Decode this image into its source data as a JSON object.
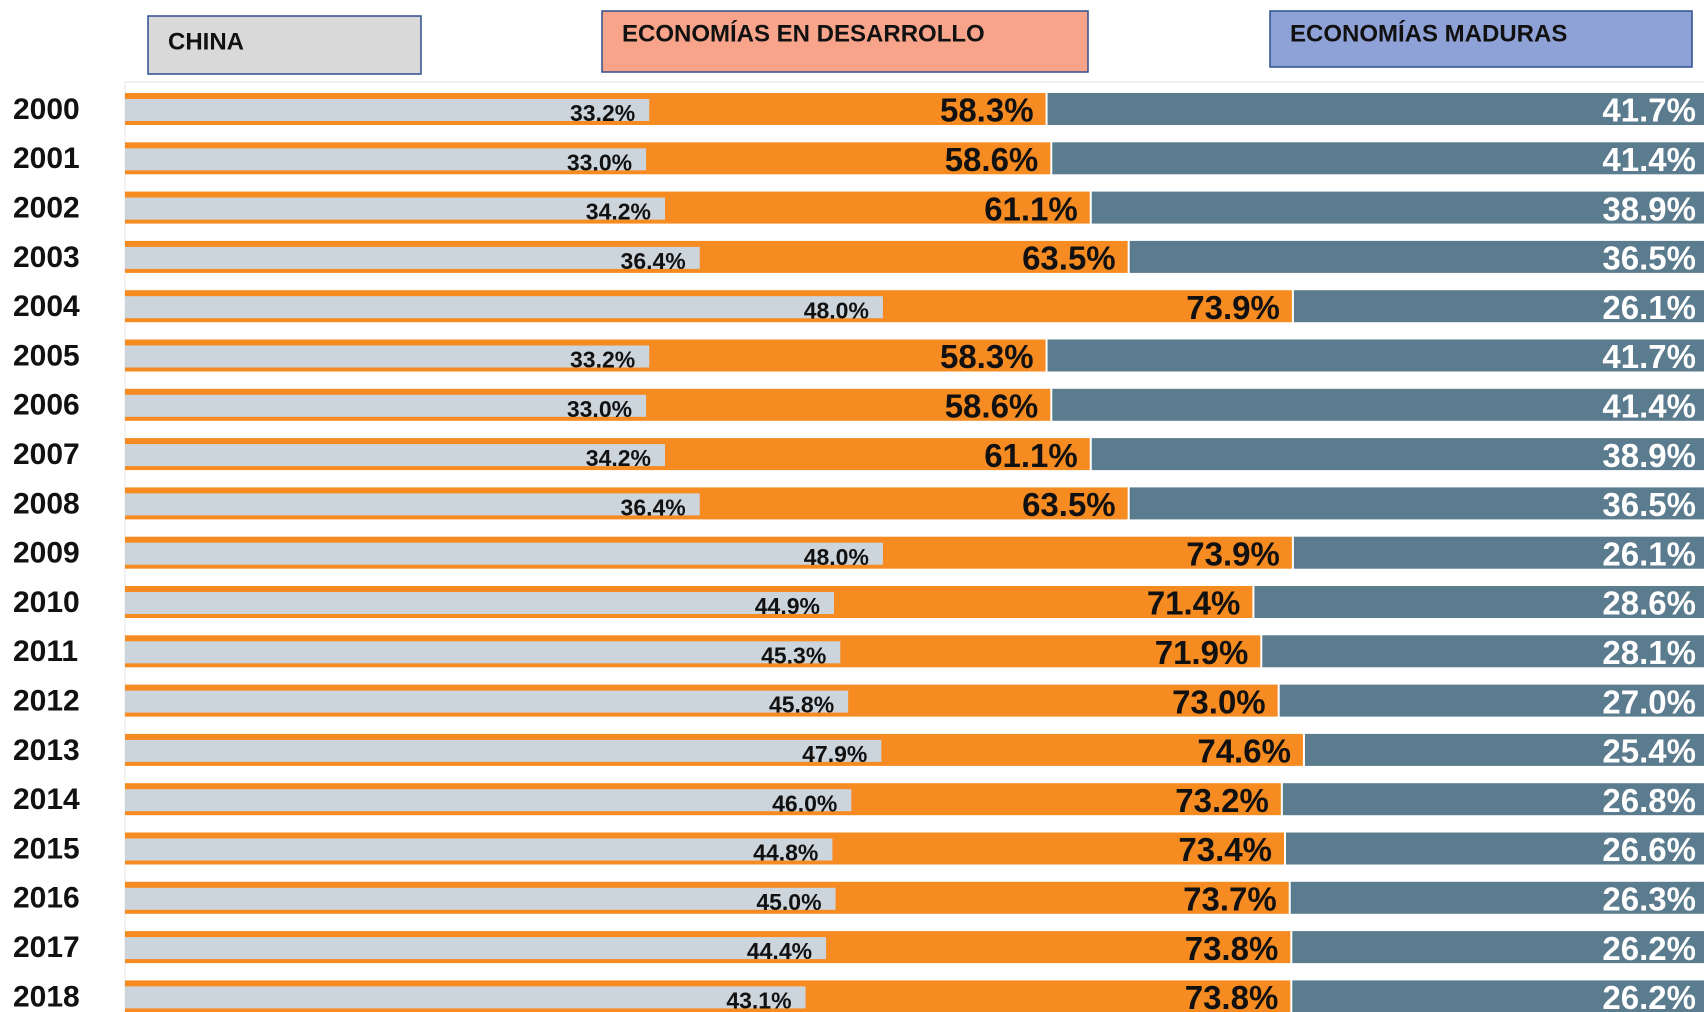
{
  "chart_data": {
    "type": "bar",
    "categories": [
      "2000",
      "2001",
      "2002",
      "2003",
      "2004",
      "2005",
      "2006",
      "2007",
      "2008",
      "2009",
      "2010",
      "2011",
      "2012",
      "2013",
      "2014",
      "2015",
      "2016",
      "2017",
      "2018"
    ],
    "series": [
      {
        "name": "CHINA",
        "color": "#cdd5dc",
        "legend_color": "#d9d9d9",
        "values": [
          33.2,
          33.0,
          34.2,
          36.4,
          48.0,
          33.2,
          33.0,
          34.2,
          36.4,
          48.0,
          44.9,
          45.3,
          45.8,
          47.9,
          46.0,
          44.8,
          45.0,
          44.4,
          43.1
        ],
        "value_labels": [
          "33.2%",
          "33.0%",
          "34.2%",
          "36.4%",
          "48.0%",
          "33.2%",
          "33.0%",
          "34.2%",
          "36.4%",
          "48.0%",
          "44.9%",
          "45.3%",
          "45.8%",
          "47.9%",
          "46.0%",
          "44.8%",
          "45.0%",
          "44.4%",
          "43.1%"
        ]
      },
      {
        "name": "ECONOMÍAS EN DESARROLLO",
        "color": "#f68b21",
        "legend_color": "#f8a48a",
        "values": [
          58.3,
          58.6,
          61.1,
          63.5,
          73.9,
          58.3,
          58.6,
          61.1,
          63.5,
          73.9,
          71.4,
          71.9,
          73.0,
          74.6,
          73.2,
          73.4,
          73.7,
          73.8,
          73.8
        ],
        "value_labels": [
          "58.3%",
          "58.6%",
          "61.1%",
          "63.5%",
          "73.9%",
          "58.3%",
          "58.6%",
          "61.1%",
          "63.5%",
          "73.9%",
          "71.4%",
          "71.9%",
          "73.0%",
          "74.6%",
          "73.2%",
          "73.4%",
          "73.7%",
          "73.8%",
          "73.8%"
        ]
      },
      {
        "name": "ECONOMÍAS MADURAS",
        "color": "#5b7b8e",
        "legend_color": "#8fa2d8",
        "values": [
          41.7,
          41.4,
          38.9,
          36.5,
          26.1,
          41.7,
          41.4,
          38.9,
          36.5,
          26.1,
          28.6,
          28.1,
          27.0,
          25.4,
          26.8,
          26.6,
          26.3,
          26.2,
          26.2
        ],
        "value_labels": [
          "41.7%",
          "41.4%",
          "38.9%",
          "36.5%",
          "26.1%",
          "41.7%",
          "41.4%",
          "38.9%",
          "36.5%",
          "26.1%",
          "28.6%",
          "28.1%",
          "27.0%",
          "25.4%",
          "26.8%",
          "26.6%",
          "26.3%",
          "26.2%",
          "26.2%"
        ]
      }
    ]
  }
}
